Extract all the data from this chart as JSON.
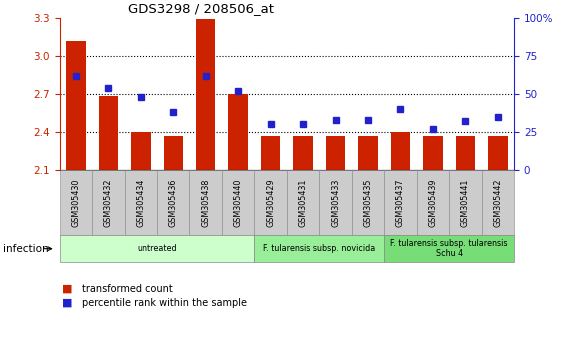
{
  "title": "GDS3298 / 208506_at",
  "samples": [
    "GSM305430",
    "GSM305432",
    "GSM305434",
    "GSM305436",
    "GSM305438",
    "GSM305440",
    "GSM305429",
    "GSM305431",
    "GSM305433",
    "GSM305435",
    "GSM305437",
    "GSM305439",
    "GSM305441",
    "GSM305442"
  ],
  "transformed_count": [
    3.12,
    2.68,
    2.4,
    2.37,
    3.29,
    2.7,
    2.37,
    2.37,
    2.37,
    2.37,
    2.4,
    2.37,
    2.37,
    2.37
  ],
  "percentile_rank": [
    62,
    54,
    48,
    38,
    62,
    52,
    30,
    30,
    33,
    33,
    40,
    27,
    32,
    35
  ],
  "ylim_left": [
    2.1,
    3.3
  ],
  "ylim_right": [
    0,
    100
  ],
  "yticks_left": [
    2.1,
    2.4,
    2.7,
    3.0,
    3.3
  ],
  "yticks_right": [
    0,
    25,
    50,
    75,
    100
  ],
  "groups": [
    {
      "label": "untreated",
      "start": 0,
      "end": 6,
      "color": "#ccffcc"
    },
    {
      "label": "F. tularensis subsp. novicida",
      "start": 6,
      "end": 10,
      "color": "#99ee99"
    },
    {
      "label": "F. tularensis subsp. tularensis\nSchu 4",
      "start": 10,
      "end": 14,
      "color": "#77dd77"
    }
  ],
  "group_row_label": "infection",
  "bar_color": "#cc2200",
  "dot_color": "#2222cc",
  "left_label_color": "#cc2200",
  "right_label_color": "#2222cc",
  "legend_items": [
    {
      "color": "#cc2200",
      "label": "transformed count"
    },
    {
      "color": "#2222cc",
      "label": "percentile rank within the sample"
    }
  ],
  "tick_label_bg": "#cccccc"
}
